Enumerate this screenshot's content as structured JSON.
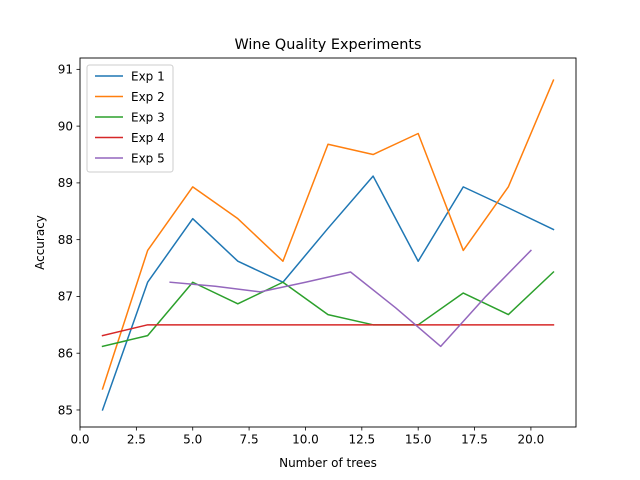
{
  "chart_data": {
    "type": "line",
    "title": "Wine Quality Experiments",
    "xlabel": "Number of trees",
    "ylabel": "Accuracy",
    "xlim": [
      0,
      22
    ],
    "ylim": [
      84.7,
      91.2
    ],
    "xticks": [
      0.0,
      2.5,
      5.0,
      7.5,
      10.0,
      12.5,
      15.0,
      17.5,
      20.0
    ],
    "xtick_labels": [
      "0.0",
      "2.5",
      "5.0",
      "7.5",
      "10.0",
      "12.5",
      "15.0",
      "17.5",
      "20.0"
    ],
    "yticks": [
      85,
      86,
      87,
      88,
      89,
      90,
      91
    ],
    "ytick_labels": [
      "85",
      "86",
      "87",
      "88",
      "89",
      "90",
      "91"
    ],
    "grid": false,
    "legend_position": "top-left",
    "series": [
      {
        "name": "Exp 1",
        "color": "#1f77b4",
        "x": [
          1,
          3,
          5,
          7,
          9,
          11,
          13,
          15,
          17,
          19,
          21
        ],
        "y": [
          85.0,
          87.25,
          88.37,
          87.62,
          87.25,
          88.2,
          89.12,
          87.62,
          88.93,
          88.56,
          88.18
        ]
      },
      {
        "name": "Exp 2",
        "color": "#ff7f0e",
        "x": [
          1,
          3,
          5,
          7,
          9,
          11,
          13,
          15,
          17,
          19,
          21
        ],
        "y": [
          85.37,
          87.81,
          88.93,
          88.37,
          87.62,
          89.68,
          89.5,
          89.87,
          87.81,
          88.93,
          90.81
        ]
      },
      {
        "name": "Exp 3",
        "color": "#2ca02c",
        "x": [
          1,
          3,
          5,
          7,
          9,
          11,
          13,
          15,
          17,
          19,
          21
        ],
        "y": [
          86.12,
          86.31,
          87.25,
          86.87,
          87.25,
          86.68,
          86.5,
          86.5,
          87.06,
          86.68,
          87.43
        ]
      },
      {
        "name": "Exp 4",
        "color": "#d62728",
        "x": [
          1,
          3,
          5,
          7,
          9,
          11,
          13,
          15,
          17,
          19,
          21
        ],
        "y": [
          86.31,
          86.5,
          86.5,
          86.5,
          86.5,
          86.5,
          86.5,
          86.5,
          86.5,
          86.5,
          86.5
        ]
      },
      {
        "name": "Exp 5",
        "color": "#9467bd",
        "x": [
          4,
          6,
          8,
          10,
          12,
          14,
          16,
          18,
          20
        ],
        "y": [
          87.25,
          87.18,
          87.08,
          87.25,
          87.43,
          86.8,
          86.12,
          87.0,
          87.81
        ]
      }
    ]
  }
}
